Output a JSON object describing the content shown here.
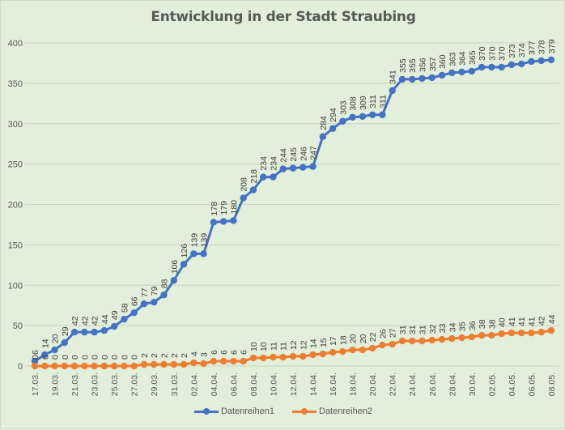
{
  "chart_data": {
    "type": "line",
    "title": "Entwicklung in der Stadt Straubing",
    "xlabel": "",
    "ylabel": "",
    "ylim": [
      0,
      400
    ],
    "yticks": [
      0,
      50,
      100,
      150,
      200,
      250,
      300,
      350,
      400
    ],
    "grid": true,
    "legend_position": "bottom",
    "x": [
      "17.03.",
      "18.03.",
      "19.03.",
      "20.03.",
      "21.03.",
      "22.03.",
      "23.03.",
      "24.03.",
      "25.03.",
      "26.03.",
      "27.03.",
      "28.03.",
      "29.03.",
      "30.03.",
      "31.03.",
      "01.04.",
      "02.04.",
      "03.04.",
      "04.04.",
      "05.04.",
      "06.04.",
      "07.04.",
      "08.04.",
      "09.04.",
      "10.04.",
      "11.04.",
      "12.04.",
      "13.04.",
      "14.04.",
      "15.04.",
      "16.04.",
      "17.04.",
      "18.04.",
      "19.04.",
      "20.04.",
      "21.04.",
      "22.04.",
      "23.04.",
      "24.04.",
      "25.04.",
      "26.04.",
      "27.04.",
      "28.04.",
      "29.04.",
      "30.04.",
      "01.05.",
      "02.05.",
      "03.05.",
      "04.05.",
      "05.05.",
      "06.05.",
      "07.05.",
      "08.05."
    ],
    "x_tick_labels": [
      "17.03.",
      "19.03.",
      "21.03.",
      "23.03.",
      "25.03.",
      "27.03.",
      "29.03.",
      "31.03.",
      "02.04.",
      "04.04.",
      "06.04.",
      "08.04.",
      "10.04.",
      "12.04.",
      "14.04.",
      "16.04.",
      "18.04.",
      "20.04.",
      "22.04.",
      "24.04.",
      "26.04.",
      "28.04.",
      "30.04.",
      "02.05.",
      "04.05.",
      "06.05.",
      "08.05."
    ],
    "series": [
      {
        "name": "Datenreihen1",
        "color": "#4472c4",
        "values": [
          6,
          14,
          20,
          29,
          42,
          42,
          42,
          44,
          49,
          58,
          66,
          77,
          79,
          88,
          106,
          126,
          139,
          139,
          178,
          179,
          180,
          208,
          218,
          234,
          234,
          244,
          245,
          246,
          247,
          284,
          294,
          303,
          308,
          309,
          311,
          311,
          341,
          355,
          355,
          356,
          357,
          360,
          363,
          364,
          365,
          370,
          370,
          370,
          373,
          374,
          377,
          378,
          379
        ]
      },
      {
        "name": "Datenreihen2",
        "color": "#ed7d31",
        "values": [
          0,
          0,
          0,
          0,
          0,
          0,
          0,
          0,
          0,
          0,
          0,
          2,
          2,
          2,
          2,
          2,
          4,
          3,
          6,
          6,
          6,
          6,
          10,
          10,
          11,
          11,
          12,
          12,
          14,
          15,
          17,
          18,
          20,
          20,
          22,
          26,
          27,
          31,
          31,
          31,
          32,
          33,
          34,
          35,
          36,
          38,
          38,
          40,
          41,
          41,
          41,
          42,
          44
        ]
      }
    ]
  },
  "colors": {
    "background": "#e2efda",
    "gridline": "#c9d6c1",
    "text": "#595959"
  }
}
